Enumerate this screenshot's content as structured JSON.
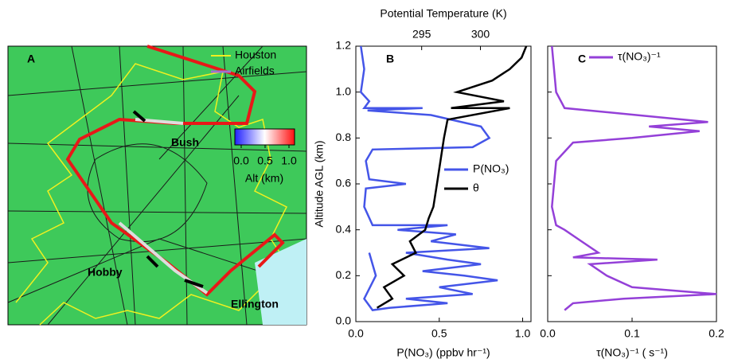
{
  "map": {
    "panel": "A",
    "legend": [
      "Houston",
      "Airfields"
    ],
    "places": [
      "Bush",
      "Hobby",
      "Ellington"
    ],
    "colorbar": {
      "ticks": [
        {
          "value": 0,
          "label": "0.0"
        },
        {
          "value": 0.5,
          "label": "0.5"
        },
        {
          "value": 1,
          "label": "1.0"
        }
      ],
      "lim": [
        0,
        1
      ],
      "label": "Alt (km)"
    }
  },
  "chart_data": [
    {
      "type": "line",
      "panel": "B",
      "xlabel": "P(NO₃) (ppbv hr⁻¹)",
      "ylabel": "Altitude AGL (km)",
      "x2label": "Potential Temperature (K)",
      "xlim": [
        0,
        1.05
      ],
      "xticks": [
        {
          "value": 0,
          "label": "0.0"
        },
        {
          "value": 0.5,
          "label": "0.5"
        },
        {
          "value": 1,
          "label": "1.0"
        }
      ],
      "x2lim": [
        289.4,
        304.3
      ],
      "x2ticks": [
        295,
        300
      ],
      "ylim": [
        0,
        1.2
      ],
      "yticks": [
        {
          "value": 0,
          "label": "0.0"
        },
        {
          "value": 0.2,
          "label": "0.2"
        },
        {
          "value": 0.4,
          "label": "0.4"
        },
        {
          "value": 0.6,
          "label": "0.6"
        },
        {
          "value": 0.8,
          "label": "0.8"
        },
        {
          "value": 1,
          "label": "1.0"
        },
        {
          "value": 1.2,
          "label": "1.2"
        }
      ],
      "series": [
        {
          "name": "P(NO₃)",
          "color": "#4455e8",
          "values": [
            0.03,
            0.05,
            0.03,
            0.08,
            0.05,
            0.4,
            0.07,
            0.45,
            0.75,
            0.8,
            0.7,
            0.1,
            0.06,
            0.08,
            0.3,
            0.06,
            0.05,
            0.1,
            0.55,
            0.25,
            0.6,
            0.45,
            0.8,
            0.3,
            0.55,
            0.75,
            0.4,
            0.65,
            0.85,
            0.5,
            0.7,
            0.3,
            0.55,
            0.2,
            0.1,
            0.05,
            0.12,
            0.08
          ],
          "altitude": [
            1.2,
            1.1,
            1.0,
            0.96,
            0.93,
            0.93,
            0.92,
            0.9,
            0.85,
            0.8,
            0.76,
            0.75,
            0.7,
            0.62,
            0.6,
            0.58,
            0.5,
            0.42,
            0.42,
            0.4,
            0.38,
            0.35,
            0.32,
            0.3,
            0.27,
            0.25,
            0.22,
            0.2,
            0.18,
            0.15,
            0.12,
            0.1,
            0.08,
            0.06,
            0.05,
            0.1,
            0.2,
            0.3
          ]
        },
        {
          "name": "θ",
          "color": "#000000",
          "axis": "x2",
          "values": [
            291.2,
            292.5,
            291.8,
            293.5,
            292.5,
            294.5,
            294,
            295.3,
            295.6,
            296,
            296.3,
            296.6,
            296.9,
            297.2,
            302.5,
            297.5,
            302,
            298,
            301,
            302.5,
            303.5,
            303.9
          ],
          "altitude": [
            0.06,
            0.1,
            0.15,
            0.2,
            0.25,
            0.3,
            0.35,
            0.4,
            0.45,
            0.5,
            0.6,
            0.7,
            0.8,
            0.88,
            0.93,
            0.93,
            0.96,
            1.0,
            1.05,
            1.1,
            1.15,
            1.2
          ]
        }
      ]
    },
    {
      "type": "line",
      "panel": "C",
      "xlabel": "τ(NO₃)⁻¹ ( s⁻¹)",
      "xlim": [
        0,
        0.2
      ],
      "xticks": [
        {
          "value": 0,
          "label": "0.0"
        },
        0.1,
        0.2
      ],
      "ylim": [
        0,
        1.2
      ],
      "yticks": [
        0,
        0.2,
        0.4,
        0.6,
        0.8,
        1,
        1.2
      ],
      "series": [
        {
          "name": "τ(NO₃)⁻¹",
          "color": "#9440d8",
          "values": [
            0.005,
            0.01,
            0.02,
            0.19,
            0.12,
            0.18,
            0.1,
            0.03,
            0.01,
            0.005,
            0.01,
            0.02,
            0.04,
            0.06,
            0.03,
            0.13,
            0.05,
            0.07,
            0.1,
            0.2,
            0.09,
            0.03,
            0.02
          ],
          "altitude": [
            1.2,
            1.0,
            0.93,
            0.87,
            0.85,
            0.83,
            0.8,
            0.78,
            0.7,
            0.5,
            0.42,
            0.4,
            0.35,
            0.3,
            0.28,
            0.27,
            0.25,
            0.2,
            0.15,
            0.12,
            0.1,
            0.08,
            0.05
          ]
        }
      ]
    }
  ]
}
